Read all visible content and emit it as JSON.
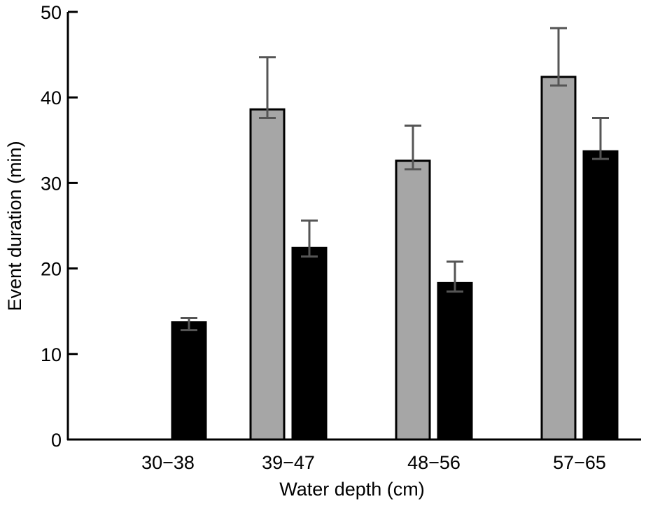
{
  "chart_data": {
    "type": "bar",
    "title": "",
    "xlabel": "Water depth (cm)",
    "ylabel": "Event duration (min)",
    "categories": [
      "30−38",
      "39−47",
      "48−56",
      "57−65"
    ],
    "ylim": [
      0,
      50
    ],
    "yticks": [
      0,
      10,
      20,
      30,
      40,
      50
    ],
    "grid": false,
    "legend": "none",
    "series": [
      {
        "color": "#a6a6a6",
        "values": [
          null,
          38.6,
          32.6,
          42.4
        ],
        "error_low": [
          null,
          37.6,
          31.6,
          41.4
        ],
        "error_high": [
          null,
          44.7,
          36.7,
          48.1
        ]
      },
      {
        "color": "#000000",
        "values": [
          13.7,
          22.4,
          18.3,
          33.7
        ],
        "error_low": [
          12.8,
          21.4,
          17.3,
          32.8
        ],
        "error_high": [
          14.2,
          25.6,
          20.8,
          37.6
        ]
      }
    ],
    "error_bar_color": "#555555"
  }
}
